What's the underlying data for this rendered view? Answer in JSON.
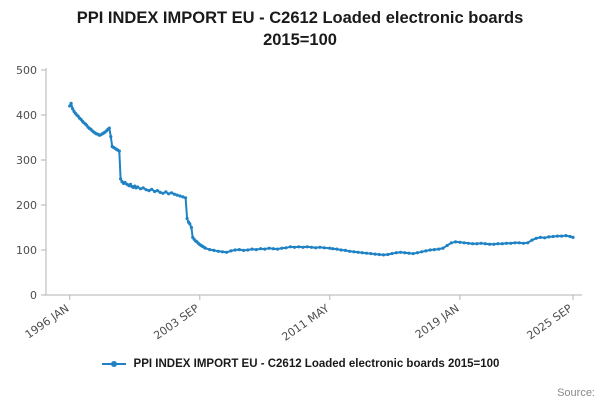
{
  "title": {
    "line1": "PPI INDEX IMPORT EU - C2612 Loaded electronic boards",
    "line2": "2015=100"
  },
  "legend": {
    "label": "PPI INDEX IMPORT EU - C2612 Loaded electronic boards 2015=100"
  },
  "source": {
    "label": "Source:"
  },
  "chart_data": {
    "type": "line",
    "title": "PPI INDEX IMPORT EU - C2612 Loaded electronic boards 2015=100",
    "xlabel": "",
    "ylabel": "",
    "ylim": [
      0,
      500
    ],
    "xlim": [
      1994.6,
      2026.2
    ],
    "grid": false,
    "legend_position": "bottom",
    "color": "#1e82c4",
    "axis_color": "#b3b3b3",
    "tick_color": "#4d4d4d",
    "y_ticks": [
      0,
      100,
      200,
      300,
      400,
      500
    ],
    "x_ticks": [
      {
        "x": 1996.0,
        "label": "1996 JAN"
      },
      {
        "x": 2003.667,
        "label": "2003 SEP"
      },
      {
        "x": 2011.333,
        "label": "2011 MAY"
      },
      {
        "x": 2019.0,
        "label": "2019 JAN"
      },
      {
        "x": 2025.667,
        "label": "2025 SEP"
      }
    ],
    "series_name": "PPI INDEX IMPORT EU - C2612 Loaded electronic boards 2015=100",
    "points": [
      [
        1996.0,
        420
      ],
      [
        1996.08,
        426
      ],
      [
        1996.17,
        414
      ],
      [
        1996.25,
        408
      ],
      [
        1996.33,
        404
      ],
      [
        1996.42,
        400
      ],
      [
        1996.5,
        397
      ],
      [
        1996.58,
        393
      ],
      [
        1996.67,
        390
      ],
      [
        1996.75,
        386
      ],
      [
        1996.83,
        383
      ],
      [
        1996.92,
        380
      ],
      [
        1997.0,
        377
      ],
      [
        1997.08,
        373
      ],
      [
        1997.17,
        370
      ],
      [
        1997.25,
        368
      ],
      [
        1997.33,
        365
      ],
      [
        1997.42,
        362
      ],
      [
        1997.5,
        360
      ],
      [
        1997.58,
        358
      ],
      [
        1997.67,
        357
      ],
      [
        1997.75,
        355
      ],
      [
        1997.83,
        356
      ],
      [
        1997.92,
        358
      ],
      [
        1998.0,
        360
      ],
      [
        1998.08,
        362
      ],
      [
        1998.17,
        365
      ],
      [
        1998.25,
        368
      ],
      [
        1998.33,
        371
      ],
      [
        1998.42,
        352
      ],
      [
        1998.5,
        330
      ],
      [
        1998.58,
        328
      ],
      [
        1998.67,
        326
      ],
      [
        1998.75,
        324
      ],
      [
        1998.83,
        322
      ],
      [
        1998.92,
        320
      ],
      [
        1999.0,
        258
      ],
      [
        1999.08,
        252
      ],
      [
        1999.17,
        248
      ],
      [
        1999.25,
        250
      ],
      [
        1999.33,
        247
      ],
      [
        1999.42,
        245
      ],
      [
        1999.5,
        243
      ],
      [
        1999.58,
        246
      ],
      [
        1999.67,
        241
      ],
      [
        1999.75,
        239
      ],
      [
        1999.83,
        242
      ],
      [
        1999.92,
        238
      ],
      [
        2000.0,
        240
      ],
      [
        2000.17,
        236
      ],
      [
        2000.33,
        238
      ],
      [
        2000.5,
        234
      ],
      [
        2000.67,
        232
      ],
      [
        2000.83,
        235
      ],
      [
        2001.0,
        230
      ],
      [
        2001.17,
        232
      ],
      [
        2001.33,
        228
      ],
      [
        2001.5,
        226
      ],
      [
        2001.67,
        229
      ],
      [
        2001.83,
        225
      ],
      [
        2002.0,
        227
      ],
      [
        2002.17,
        224
      ],
      [
        2002.33,
        222
      ],
      [
        2002.5,
        220
      ],
      [
        2002.67,
        218
      ],
      [
        2002.83,
        216
      ],
      [
        2002.92,
        170
      ],
      [
        2003.0,
        162
      ],
      [
        2003.08,
        158
      ],
      [
        2003.17,
        150
      ],
      [
        2003.25,
        128
      ],
      [
        2003.33,
        124
      ],
      [
        2003.42,
        120
      ],
      [
        2003.5,
        118
      ],
      [
        2003.58,
        115
      ],
      [
        2003.67,
        112
      ],
      [
        2003.75,
        110
      ],
      [
        2003.83,
        108
      ],
      [
        2003.92,
        106
      ],
      [
        2004.0,
        104
      ],
      [
        2004.25,
        101
      ],
      [
        2004.5,
        99
      ],
      [
        2004.75,
        97
      ],
      [
        2005.0,
        96
      ],
      [
        2005.25,
        95
      ],
      [
        2005.5,
        98
      ],
      [
        2005.75,
        100
      ],
      [
        2006.0,
        101
      ],
      [
        2006.25,
        99
      ],
      [
        2006.5,
        100
      ],
      [
        2006.75,
        102
      ],
      [
        2007.0,
        101
      ],
      [
        2007.25,
        103
      ],
      [
        2007.5,
        102
      ],
      [
        2007.75,
        104
      ],
      [
        2008.0,
        103
      ],
      [
        2008.25,
        102
      ],
      [
        2008.5,
        104
      ],
      [
        2008.75,
        105
      ],
      [
        2009.0,
        107
      ],
      [
        2009.25,
        106
      ],
      [
        2009.5,
        107
      ],
      [
        2009.75,
        106
      ],
      [
        2010.0,
        107
      ],
      [
        2010.25,
        106
      ],
      [
        2010.5,
        105
      ],
      [
        2010.75,
        106
      ],
      [
        2011.0,
        105
      ],
      [
        2011.33,
        104
      ],
      [
        2011.5,
        103
      ],
      [
        2011.75,
        102
      ],
      [
        2012.0,
        100
      ],
      [
        2012.25,
        99
      ],
      [
        2012.5,
        97
      ],
      [
        2012.75,
        96
      ],
      [
        2013.0,
        95
      ],
      [
        2013.25,
        94
      ],
      [
        2013.5,
        93
      ],
      [
        2013.75,
        92
      ],
      [
        2014.0,
        91
      ],
      [
        2014.25,
        90
      ],
      [
        2014.5,
        89
      ],
      [
        2014.75,
        90
      ],
      [
        2015.0,
        92
      ],
      [
        2015.25,
        94
      ],
      [
        2015.5,
        95
      ],
      [
        2015.75,
        94
      ],
      [
        2016.0,
        93
      ],
      [
        2016.25,
        92
      ],
      [
        2016.5,
        94
      ],
      [
        2016.75,
        96
      ],
      [
        2017.0,
        98
      ],
      [
        2017.25,
        100
      ],
      [
        2017.5,
        101
      ],
      [
        2017.75,
        102
      ],
      [
        2018.0,
        104
      ],
      [
        2018.25,
        110
      ],
      [
        2018.5,
        116
      ],
      [
        2018.75,
        118
      ],
      [
        2019.0,
        117
      ],
      [
        2019.25,
        116
      ],
      [
        2019.5,
        115
      ],
      [
        2019.75,
        114
      ],
      [
        2020.0,
        114
      ],
      [
        2020.25,
        115
      ],
      [
        2020.5,
        114
      ],
      [
        2020.75,
        113
      ],
      [
        2021.0,
        113
      ],
      [
        2021.25,
        114
      ],
      [
        2021.5,
        114
      ],
      [
        2021.75,
        115
      ],
      [
        2022.0,
        115
      ],
      [
        2022.25,
        116
      ],
      [
        2022.5,
        116
      ],
      [
        2022.75,
        115
      ],
      [
        2023.0,
        116
      ],
      [
        2023.25,
        122
      ],
      [
        2023.5,
        126
      ],
      [
        2023.75,
        128
      ],
      [
        2024.0,
        127
      ],
      [
        2024.25,
        129
      ],
      [
        2024.5,
        130
      ],
      [
        2024.75,
        131
      ],
      [
        2025.0,
        131
      ],
      [
        2025.25,
        132
      ],
      [
        2025.5,
        130
      ],
      [
        2025.67,
        128
      ]
    ]
  }
}
